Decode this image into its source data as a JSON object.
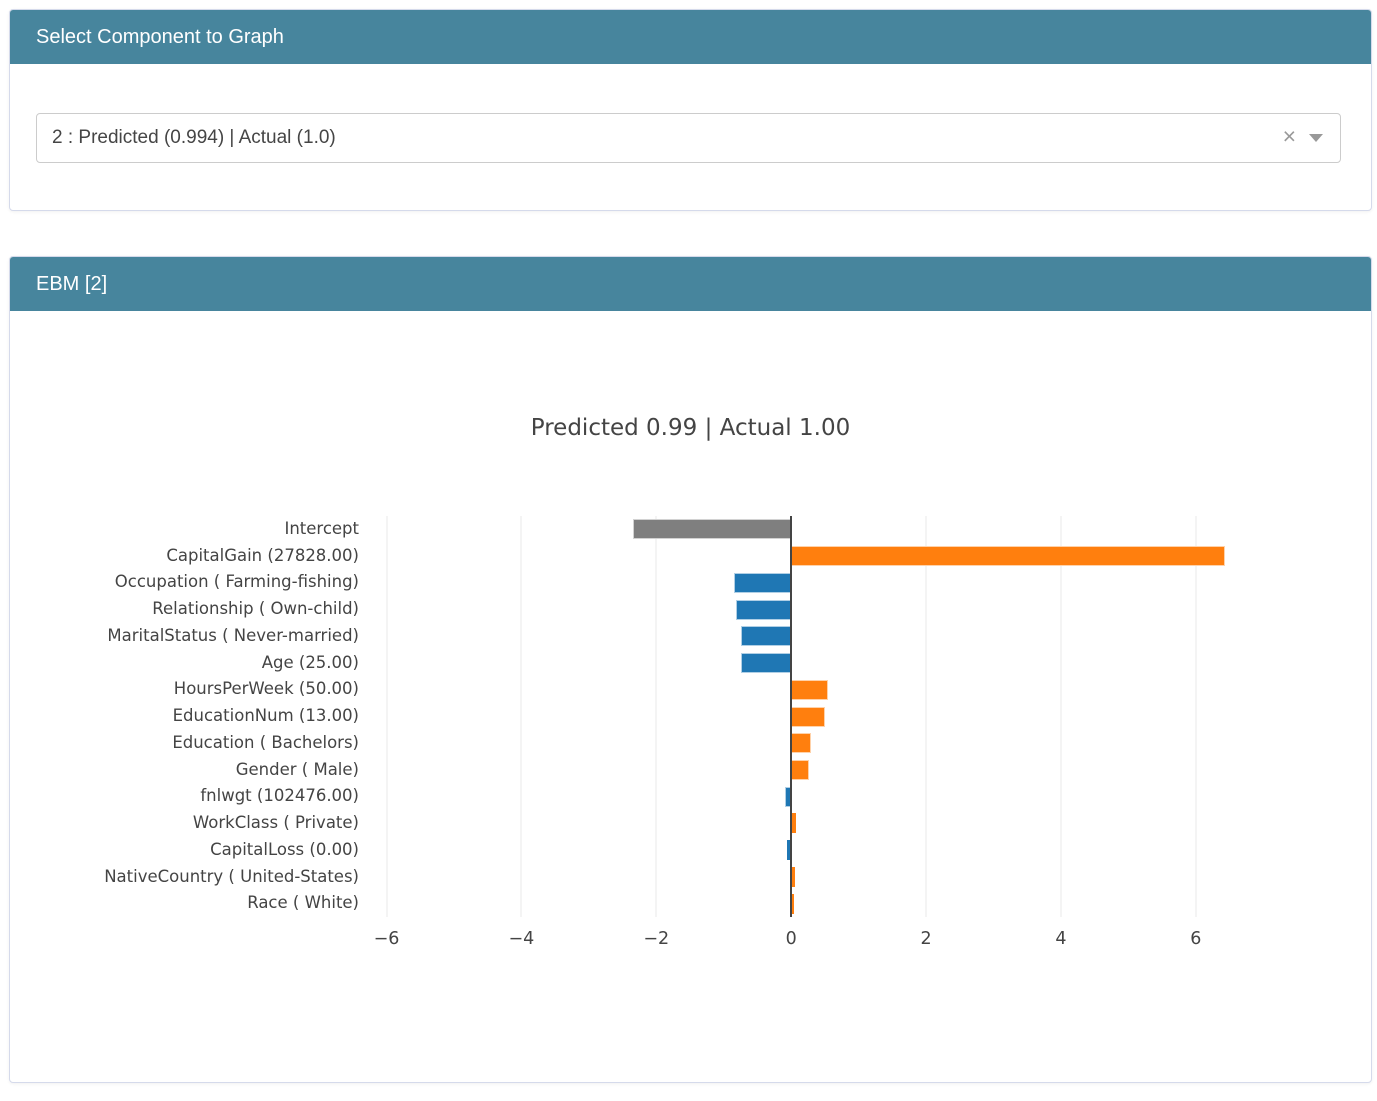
{
  "select_card": {
    "header": "Select Component to Graph",
    "dropdown": {
      "value": "2 : Predicted (0.994) | Actual (1.0)",
      "clear_icon": "×",
      "caret_icon": "caret-down"
    }
  },
  "ebm_card": {
    "header": "EBM [2]"
  },
  "chart_data": {
    "type": "bar",
    "orientation": "horizontal",
    "title": "Predicted 0.99 | Actual 1.00",
    "categories": [
      "Intercept",
      "CapitalGain (27828.00)",
      "Occupation ( Farming-fishing)",
      "Relationship ( Own-child)",
      "MaritalStatus ( Never-married)",
      "Age (25.00)",
      "HoursPerWeek (50.00)",
      "EducationNum (13.00)",
      "Education ( Bachelors)",
      "Gender ( Male)",
      "fnlwgt (102476.00)",
      "WorkClass ( Private)",
      "CapitalLoss (0.00)",
      "NativeCountry ( United-States)",
      "Race ( White)"
    ],
    "values": [
      -2.34,
      6.43,
      -0.85,
      -0.82,
      -0.75,
      -0.74,
      0.55,
      0.5,
      0.3,
      0.27,
      -0.09,
      0.07,
      -0.06,
      0.05,
      0.04
    ],
    "bar_colors": [
      "#7f7f7f",
      "#ff7f0e",
      "#1f77b4",
      "#1f77b4",
      "#1f77b4",
      "#1f77b4",
      "#ff7f0e",
      "#ff7f0e",
      "#ff7f0e",
      "#ff7f0e",
      "#1f77b4",
      "#ff7f0e",
      "#1f77b4",
      "#ff7f0e",
      "#ff7f0e"
    ],
    "xticks": [
      {
        "value": -6,
        "label": "−6"
      },
      {
        "value": -4,
        "label": "−4"
      },
      {
        "value": -2,
        "label": "−2"
      },
      {
        "value": 0,
        "label": "0"
      },
      {
        "value": 2,
        "label": "2"
      },
      {
        "value": 4,
        "label": "4"
      },
      {
        "value": 6,
        "label": "6"
      }
    ],
    "xlim": [
      -6.23,
      7.56
    ],
    "xlabel": "",
    "ylabel": "",
    "grid": true,
    "zero_line": true,
    "legend": "none"
  },
  "colors": {
    "panel_header_bg": "#47859d",
    "panel_header_text": "#ffffff",
    "card_border": "#d5daeb",
    "bar_positive": "#ff7f0e",
    "bar_negative": "#1f77b4",
    "bar_intercept": "#7f7f7f",
    "axis_text": "#444444",
    "gridline": "#e8e8e8",
    "zero_line": "#444444"
  }
}
